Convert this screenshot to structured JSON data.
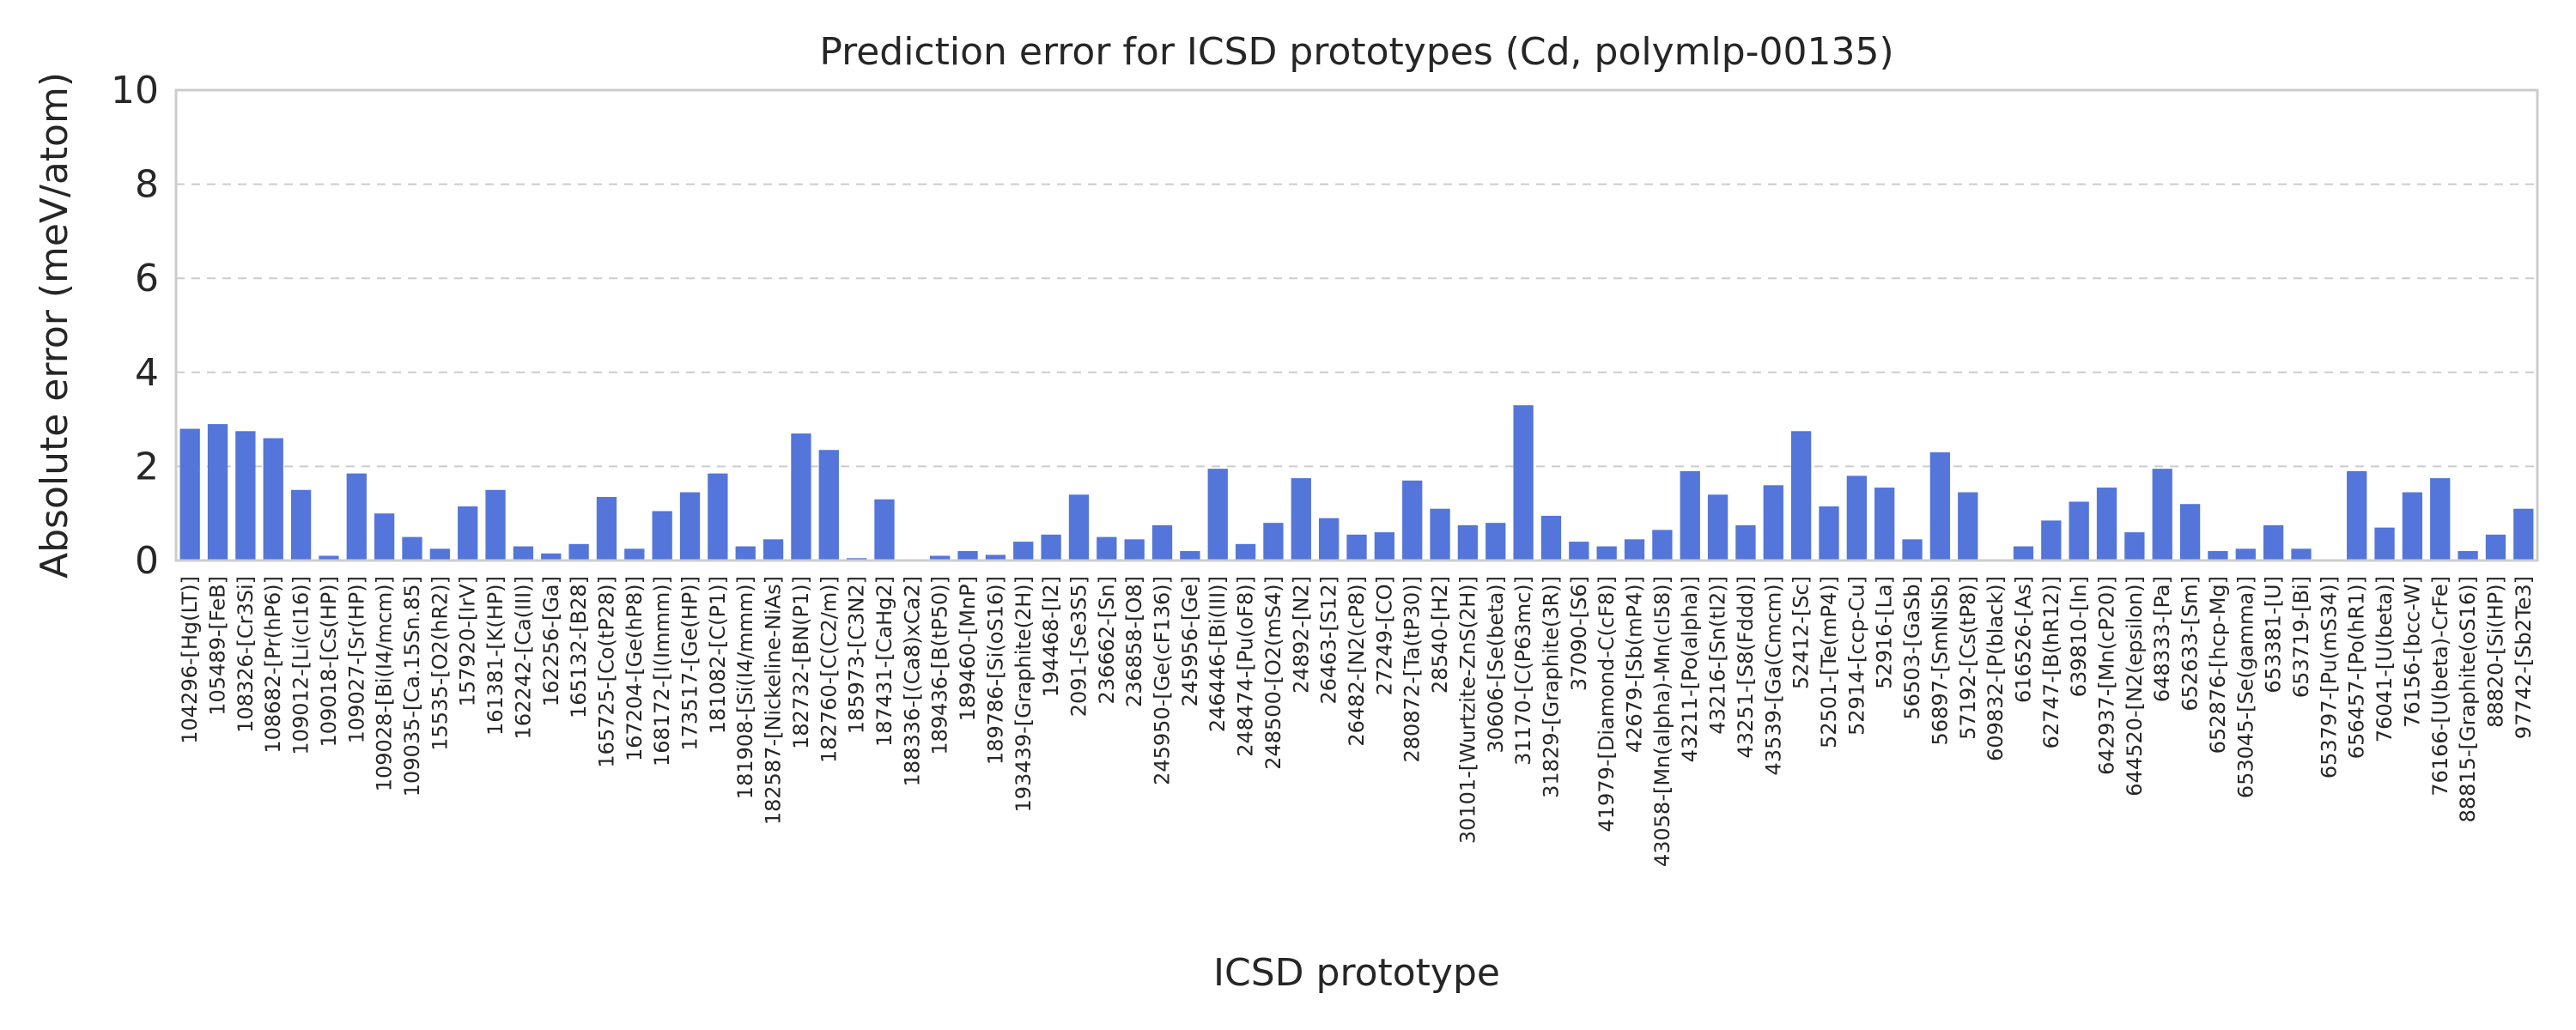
{
  "chart_data": {
    "type": "bar",
    "title": "Prediction error for ICSD prototypes (Cd, polymlp-00135)",
    "xlabel": "ICSD prototype",
    "ylabel": "Absolute error (meV/atom)",
    "ylim": [
      0,
      10
    ],
    "yticks": [
      "0",
      "2",
      "4",
      "6",
      "8",
      "10"
    ],
    "grid": true,
    "bar_color": "#5475d9",
    "categories": [
      "104296-[Hg(LT)]",
      "105489-[FeB]",
      "108326-[Cr3Si]",
      "108682-[Pr(hP6)]",
      "109012-[Li(cI16)]",
      "109018-[Cs(HP)]",
      "109027-[Sr(HP)]",
      "109028-[Bi(I4/mcm)]",
      "109035-[Ca.15Sn.85]",
      "15535-[O2(hR2)]",
      "157920-[IrV]",
      "161381-[K(HP)]",
      "162242-[Ca(III)]",
      "162256-[Ga]",
      "165132-[B28]",
      "165725-[Co(tP28)]",
      "167204-[Ge(hP8)]",
      "168172-[I(Immm)]",
      "173517-[Ge(HP)]",
      "181082-[C(P1)]",
      "181908-[Si(I4/mmm)]",
      "182587-[Nickeline-NiAs]",
      "182732-[BN(P1)]",
      "182760-[C(C2/m)]",
      "185973-[C3N2]",
      "187431-[CaHg2]",
      "188336-[(Ca8)xCa2]",
      "189436-[B(tP50)]",
      "189460-[MnP]",
      "189786-[Si(oS16)]",
      "193439-[Graphite(2H)]",
      "194468-[I2]",
      "2091-[Se3S5]",
      "236662-[Sn]",
      "236858-[O8]",
      "245950-[Ge(cF136)]",
      "245956-[Ge]",
      "246446-[Bi(III)]",
      "248474-[Pu(oF8)]",
      "248500-[O2(mS4)]",
      "24892-[N2]",
      "26463-[S12]",
      "26482-[N2(cP8)]",
      "27249-[CO]",
      "280872-[Ta(tP30)]",
      "28540-[H2]",
      "30101-[Wurtzite-ZnS(2H)]",
      "30606-[Se(beta)]",
      "31170-[C(P63mc)]",
      "31829-[Graphite(3R)]",
      "37090-[S6]",
      "41979-[Diamond-C(cF8)]",
      "42679-[Sb(mP4)]",
      "43058-[Mn(alpha)-Mn(cI58)]",
      "43211-[Po(alpha)]",
      "43216-[Sn(tI2)]",
      "43251-[S8(Fddd)]",
      "43539-[Ga(Cmcm)]",
      "52412-[Sc]",
      "52501-[Te(mP4)]",
      "52914-[ccp-Cu]",
      "52916-[La]",
      "56503-[GaSb]",
      "56897-[SmNiSb]",
      "57192-[Cs(tP8)]",
      "609832-[P(black)]",
      "616526-[As]",
      "62747-[B(hR12)]",
      "639810-[In]",
      "642937-[Mn(cP20)]",
      "644520-[N2(epsilon)]",
      "648333-[Pa]",
      "652633-[Sm]",
      "652876-[hcp-Mg]",
      "653045-[Se(gamma)]",
      "653381-[U]",
      "653719-[Bi]",
      "653797-[Pu(mS34)]",
      "656457-[Po(hR1)]",
      "76041-[U(beta)]",
      "76156-[bcc-W]",
      "76166-[U(beta)-CrFe]",
      "88815-[Graphite(oS16)]",
      "88820-[Si(HP)]",
      "97742-[Sb2Te3]"
    ],
    "values": [
      2.8,
      2.9,
      2.75,
      2.6,
      1.5,
      0.1,
      1.85,
      1.0,
      0.5,
      0.25,
      1.15,
      1.5,
      0.3,
      0.15,
      0.35,
      1.35,
      0.25,
      1.05,
      1.45,
      1.85,
      0.3,
      0.45,
      2.7,
      2.35,
      0.05,
      1.3,
      0.02,
      0.1,
      0.2,
      0.12,
      0.4,
      0.55,
      1.4,
      0.5,
      0.45,
      0.75,
      0.2,
      1.95,
      0.35,
      0.8,
      1.75,
      0.9,
      0.55,
      0.6,
      1.7,
      1.1,
      0.75,
      0.8,
      3.3,
      0.95,
      0.4,
      0.3,
      0.45,
      0.65,
      1.9,
      1.4,
      0.75,
      1.6,
      2.75,
      1.15,
      1.8,
      1.55,
      0.45,
      2.3,
      1.45,
      0.02,
      0.3,
      0.85,
      1.25,
      1.55,
      0.6,
      1.95,
      1.2,
      0.2,
      0.25,
      0.75,
      0.25,
      0.02,
      1.9,
      0.7,
      1.45,
      1.75,
      0.2,
      0.55,
      1.1
    ]
  }
}
